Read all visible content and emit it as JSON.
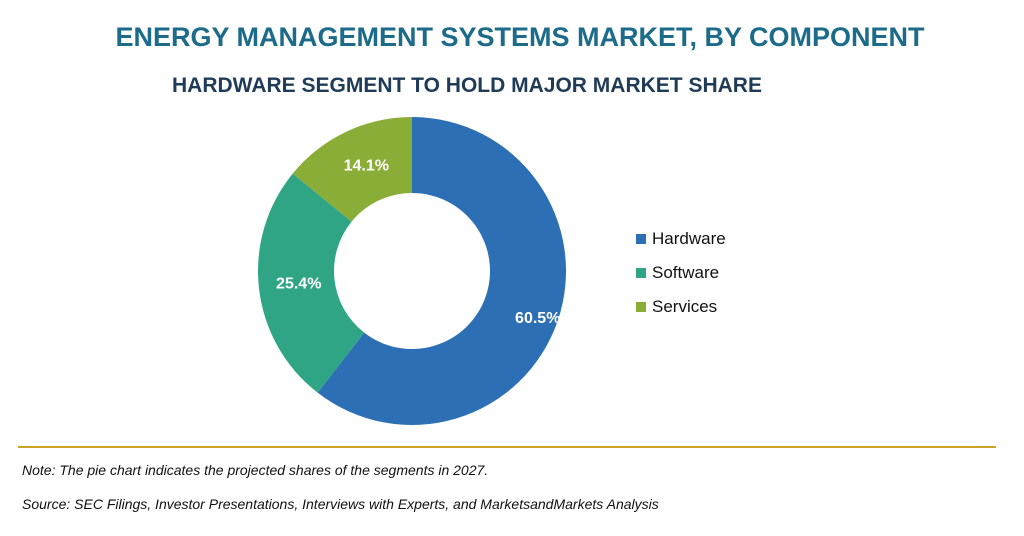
{
  "chart_data": {
    "type": "pie",
    "donut": true,
    "title": "ENERGY MANAGEMENT SYSTEMS MARKET, BY COMPONENT",
    "subtitle": "HARDWARE SEGMENT TO HOLD MAJOR MARKET SHARE",
    "categories": [
      "Hardware",
      "Software",
      "Services"
    ],
    "values": [
      60.5,
      25.4,
      14.1
    ],
    "value_labels": [
      "60.5%",
      "25.4%",
      "14.1%"
    ],
    "colors": [
      "#2d6fb5",
      "#2fa585",
      "#8aad37"
    ],
    "legend_position": "right"
  },
  "footer": {
    "note": "Note: The pie chart indicates the projected shares of the segments in 2027.",
    "source": "Source: SEC Filings, Investor Presentations, Interviews with Experts, and MarketsandMarkets Analysis"
  }
}
